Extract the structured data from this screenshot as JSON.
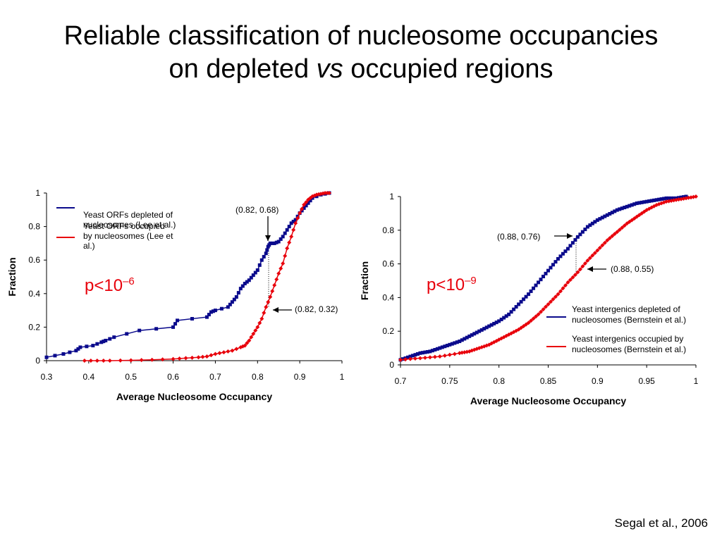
{
  "slide": {
    "title_line1": "Reliable classification of nucleosome occupancies",
    "title_line2_pre": "on depleted ",
    "title_line2_ital": "vs",
    "title_line2_post": " occupied regions",
    "citation": "Segal et al., 2006"
  },
  "colors": {
    "depleted": "#0a0a8c",
    "occupied": "#e8000b",
    "axis": "#000000"
  },
  "chart_data": [
    {
      "type": "line",
      "title": "",
      "xlabel": "Average Nucleosome Occupancy",
      "ylabel": "Fraction",
      "xlim": [
        0.3,
        1.0
      ],
      "ylim": [
        0,
        1
      ],
      "xticks": [
        0.3,
        0.4,
        0.5,
        0.6,
        0.7,
        0.8,
        0.9,
        1
      ],
      "xtick_labels": [
        "0.3",
        "0.4",
        "0.5",
        "0.6",
        "0.7",
        "0.8",
        "0.9",
        "1"
      ],
      "yticks": [
        0,
        0.2,
        0.4,
        0.6,
        0.8,
        1
      ],
      "ytick_labels": [
        "0",
        "0.2",
        "0.4",
        "0.6",
        "0.8",
        "1"
      ],
      "grid": false,
      "legend_position": "top-left",
      "pvalue": {
        "base": "p<10",
        "exp": "–6"
      },
      "series": [
        {
          "name": "Yeast ORFs depleted of nucleosomes (Lee et al.)",
          "color": "#0a0a8c",
          "marker": "square",
          "x": [
            0.3,
            0.34,
            0.37,
            0.38,
            0.41,
            0.43,
            0.44,
            0.46,
            0.52,
            0.6,
            0.61,
            0.68,
            0.69,
            0.7,
            0.73,
            0.74,
            0.75,
            0.76,
            0.77,
            0.78,
            0.79,
            0.8,
            0.81,
            0.82,
            0.825,
            0.83,
            0.84,
            0.85,
            0.86,
            0.87,
            0.88,
            0.89,
            0.9,
            0.91,
            0.92,
            0.93,
            0.95,
            0.97
          ],
          "y": [
            0.02,
            0.04,
            0.06,
            0.08,
            0.09,
            0.11,
            0.12,
            0.14,
            0.18,
            0.2,
            0.24,
            0.26,
            0.29,
            0.3,
            0.32,
            0.35,
            0.38,
            0.43,
            0.46,
            0.48,
            0.51,
            0.54,
            0.6,
            0.64,
            0.68,
            0.7,
            0.7,
            0.71,
            0.74,
            0.78,
            0.82,
            0.84,
            0.88,
            0.91,
            0.94,
            0.97,
            0.99,
            1.0
          ]
        },
        {
          "name": "Yeast ORFs occupied by nucleosomes (Lee et al.)",
          "color": "#e8000b",
          "marker": "diamond",
          "x": [
            0.39,
            0.42,
            0.45,
            0.5,
            0.55,
            0.6,
            0.63,
            0.66,
            0.68,
            0.7,
            0.72,
            0.74,
            0.76,
            0.77,
            0.78,
            0.79,
            0.8,
            0.81,
            0.82,
            0.83,
            0.84,
            0.85,
            0.86,
            0.87,
            0.88,
            0.89,
            0.9,
            0.91,
            0.92,
            0.93,
            0.94,
            0.95,
            0.96,
            0.97
          ],
          "y": [
            0.0,
            0.0,
            0.0,
            0.002,
            0.005,
            0.01,
            0.015,
            0.02,
            0.025,
            0.04,
            0.05,
            0.06,
            0.08,
            0.09,
            0.12,
            0.16,
            0.2,
            0.25,
            0.32,
            0.38,
            0.45,
            0.52,
            0.58,
            0.67,
            0.74,
            0.82,
            0.88,
            0.93,
            0.96,
            0.98,
            0.99,
            0.995,
            1.0,
            1.0
          ]
        }
      ],
      "annotations": [
        {
          "text": "(0.82, 0.68)",
          "x": 0.82,
          "y": 0.68
        },
        {
          "text": "(0.82, 0.32)",
          "x": 0.82,
          "y": 0.32
        }
      ]
    },
    {
      "type": "line",
      "title": "",
      "xlabel": "Average Nucleosome Occupancy",
      "ylabel": "Fraction",
      "xlim": [
        0.7,
        1.0
      ],
      "ylim": [
        0,
        1
      ],
      "xticks": [
        0.7,
        0.75,
        0.8,
        0.85,
        0.9,
        0.95,
        1
      ],
      "xtick_labels": [
        "0.7",
        "0.75",
        "0.8",
        "0.85",
        "0.9",
        "0.95",
        "1"
      ],
      "yticks": [
        0,
        0.2,
        0.4,
        0.6,
        0.8,
        1
      ],
      "ytick_labels": [
        "0",
        "0.2",
        "0.4",
        "0.6",
        "0.8",
        "1"
      ],
      "grid": false,
      "legend_position": "bottom-right",
      "pvalue": {
        "base": "p<10",
        "exp": "–9"
      },
      "series": [
        {
          "name": "Yeast intergenics depleted of nucleosomes (Bernstein et al.)",
          "color": "#0a0a8c",
          "marker": "square",
          "x": [
            0.7,
            0.71,
            0.72,
            0.73,
            0.74,
            0.75,
            0.76,
            0.77,
            0.78,
            0.79,
            0.8,
            0.81,
            0.82,
            0.83,
            0.84,
            0.85,
            0.86,
            0.87,
            0.88,
            0.89,
            0.9,
            0.91,
            0.92,
            0.93,
            0.94,
            0.95,
            0.96,
            0.97,
            0.98,
            0.99
          ],
          "y": [
            0.03,
            0.05,
            0.07,
            0.08,
            0.1,
            0.12,
            0.14,
            0.17,
            0.2,
            0.23,
            0.26,
            0.3,
            0.36,
            0.42,
            0.49,
            0.56,
            0.63,
            0.69,
            0.76,
            0.82,
            0.86,
            0.89,
            0.92,
            0.94,
            0.96,
            0.97,
            0.98,
            0.99,
            0.99,
            1.0
          ]
        },
        {
          "name": "Yeast intergenics occupied by nucleosomes (Bernstein et al.)",
          "color": "#e8000b",
          "marker": "diamond",
          "x": [
            0.7,
            0.72,
            0.74,
            0.76,
            0.77,
            0.78,
            0.79,
            0.8,
            0.81,
            0.82,
            0.83,
            0.84,
            0.85,
            0.86,
            0.87,
            0.88,
            0.89,
            0.9,
            0.91,
            0.92,
            0.93,
            0.94,
            0.95,
            0.96,
            0.97,
            0.98,
            0.99,
            1.0
          ],
          "y": [
            0.03,
            0.04,
            0.05,
            0.07,
            0.08,
            0.1,
            0.12,
            0.15,
            0.18,
            0.21,
            0.25,
            0.3,
            0.36,
            0.42,
            0.49,
            0.55,
            0.62,
            0.68,
            0.74,
            0.79,
            0.84,
            0.88,
            0.92,
            0.95,
            0.97,
            0.98,
            0.99,
            1.0
          ]
        }
      ],
      "annotations": [
        {
          "text": "(0.88, 0.76)",
          "x": 0.88,
          "y": 0.76
        },
        {
          "text": "(0.88, 0.55)",
          "x": 0.88,
          "y": 0.55
        }
      ]
    }
  ]
}
